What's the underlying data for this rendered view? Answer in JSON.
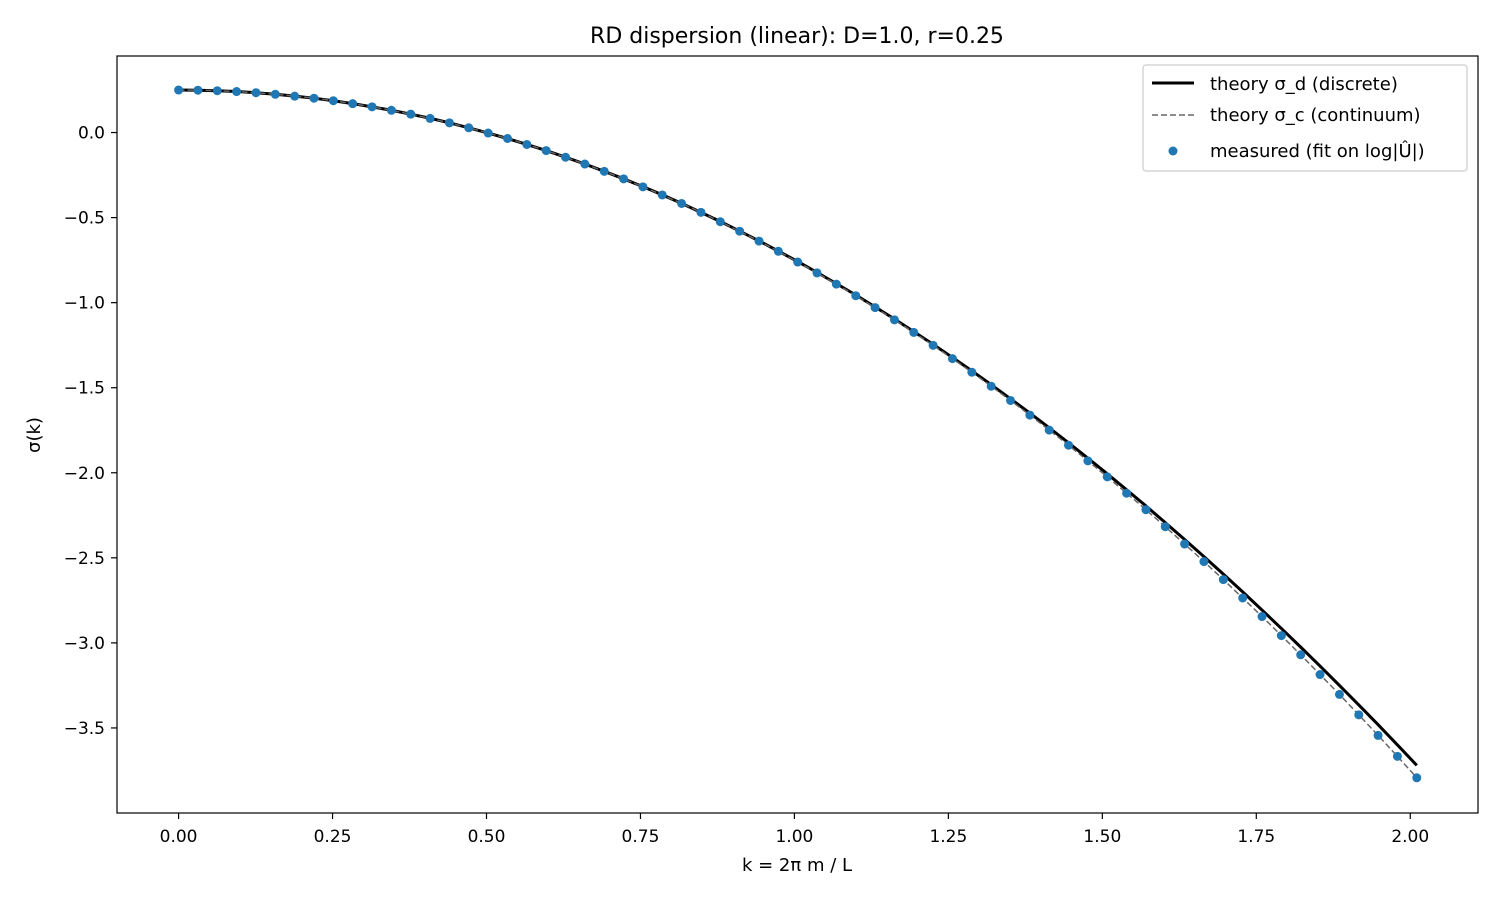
{
  "chart_data": {
    "type": "line",
    "title": "RD dispersion (linear): D=1.0, r=0.25",
    "xlabel": "k = 2π m / L",
    "ylabel": "σ(k)",
    "xlim": [
      -0.1,
      2.11
    ],
    "ylim": [
      -4.0,
      0.45
    ],
    "xticks": [
      0.0,
      0.25,
      0.5,
      0.75,
      1.0,
      1.25,
      1.5,
      1.75,
      2.0
    ],
    "xtick_labels": [
      "0.00",
      "0.25",
      "0.50",
      "0.75",
      "1.00",
      "1.25",
      "1.50",
      "1.75",
      "2.00"
    ],
    "yticks": [
      0.0,
      -0.5,
      -1.0,
      -1.5,
      -2.0,
      -2.5,
      -3.0,
      -3.5
    ],
    "ytick_labels": [
      "0.0",
      "−0.5",
      "−1.0",
      "−1.5",
      "−2.0",
      "−2.5",
      "−3.0",
      "−3.5"
    ],
    "grid": false,
    "legend_position": "top-right",
    "x": [
      0.0,
      0.0314,
      0.0628,
      0.0942,
      0.1257,
      0.1571,
      0.1885,
      0.2199,
      0.2513,
      0.2827,
      0.3142,
      0.3456,
      0.377,
      0.4084,
      0.4398,
      0.4712,
      0.5027,
      0.5341,
      0.5655,
      0.5969,
      0.6283,
      0.6597,
      0.6912,
      0.7226,
      0.754,
      0.7854,
      0.8168,
      0.8482,
      0.8796,
      0.9111,
      0.9425,
      0.9739,
      1.0053,
      1.0367,
      1.0681,
      1.0996,
      1.131,
      1.1624,
      1.1938,
      1.2252,
      1.2566,
      1.2881,
      1.3195,
      1.3509,
      1.3823,
      1.4137,
      1.4451,
      1.4765,
      1.508,
      1.5394,
      1.5708,
      1.6022,
      1.6336,
      1.665,
      1.6965,
      1.7279,
      1.7593,
      1.7907,
      1.8221,
      1.8535,
      1.885,
      1.9164,
      1.9478,
      1.9792,
      2.0106
    ],
    "series": [
      {
        "name": "theory σ_d (discrete)",
        "color": "#000000",
        "style": "solid",
        "values": [
          0.25,
          0.249,
          0.246,
          0.241,
          0.234,
          0.225,
          0.214,
          0.202,
          0.187,
          0.17,
          0.151,
          0.131,
          0.108,
          0.084,
          0.057,
          0.028,
          -0.003,
          -0.035,
          -0.07,
          -0.106,
          -0.145,
          -0.185,
          -0.228,
          -0.272,
          -0.318,
          -0.366,
          -0.416,
          -0.469,
          -0.523,
          -0.579,
          -0.637,
          -0.697,
          -0.758,
          -0.822,
          -0.888,
          -0.955,
          -1.025,
          -1.096,
          -1.17,
          -1.245,
          -1.322,
          -1.401,
          -1.482,
          -1.565,
          -1.649,
          -1.736,
          -1.824,
          -1.914,
          -2.006,
          -2.1,
          -2.195,
          -2.293,
          -2.392,
          -2.493,
          -2.596,
          -2.7,
          -2.807,
          -2.915,
          -3.025,
          -3.136,
          -3.25,
          -3.365,
          -3.481,
          -3.6,
          -3.72
        ]
      },
      {
        "name": "theory σ_c (continuum)",
        "color": "#666666",
        "style": "dashed",
        "values": [
          0.25,
          0.249,
          0.246,
          0.241,
          0.234,
          0.225,
          0.214,
          0.202,
          0.187,
          0.17,
          0.151,
          0.131,
          0.108,
          0.083,
          0.057,
          0.028,
          -0.003,
          -0.035,
          -0.07,
          -0.106,
          -0.145,
          -0.185,
          -0.228,
          -0.272,
          -0.319,
          -0.367,
          -0.417,
          -0.469,
          -0.524,
          -0.58,
          -0.638,
          -0.698,
          -0.761,
          -0.825,
          -0.891,
          -0.959,
          -1.029,
          -1.101,
          -1.175,
          -1.251,
          -1.329,
          -1.409,
          -1.491,
          -1.575,
          -1.661,
          -1.749,
          -1.838,
          -1.93,
          -2.024,
          -2.12,
          -2.217,
          -2.317,
          -2.419,
          -2.522,
          -2.628,
          -2.736,
          -2.845,
          -2.957,
          -3.07,
          -3.186,
          -3.303,
          -3.423,
          -3.544,
          -3.667,
          -3.793
        ]
      },
      {
        "name": "measured (fit on log|Û|)",
        "color": "#1f77b4",
        "style": "markers",
        "values": [
          0.25,
          0.249,
          0.246,
          0.241,
          0.234,
          0.225,
          0.214,
          0.202,
          0.187,
          0.17,
          0.151,
          0.131,
          0.108,
          0.083,
          0.057,
          0.028,
          -0.003,
          -0.035,
          -0.07,
          -0.106,
          -0.145,
          -0.185,
          -0.228,
          -0.272,
          -0.319,
          -0.367,
          -0.417,
          -0.469,
          -0.524,
          -0.58,
          -0.638,
          -0.698,
          -0.761,
          -0.825,
          -0.891,
          -0.959,
          -1.029,
          -1.101,
          -1.175,
          -1.251,
          -1.329,
          -1.409,
          -1.491,
          -1.575,
          -1.661,
          -1.749,
          -1.838,
          -1.93,
          -2.024,
          -2.12,
          -2.217,
          -2.317,
          -2.419,
          -2.522,
          -2.628,
          -2.736,
          -2.845,
          -2.957,
          -3.07,
          -3.186,
          -3.303,
          -3.423,
          -3.544,
          -3.667,
          -3.793
        ]
      }
    ]
  }
}
